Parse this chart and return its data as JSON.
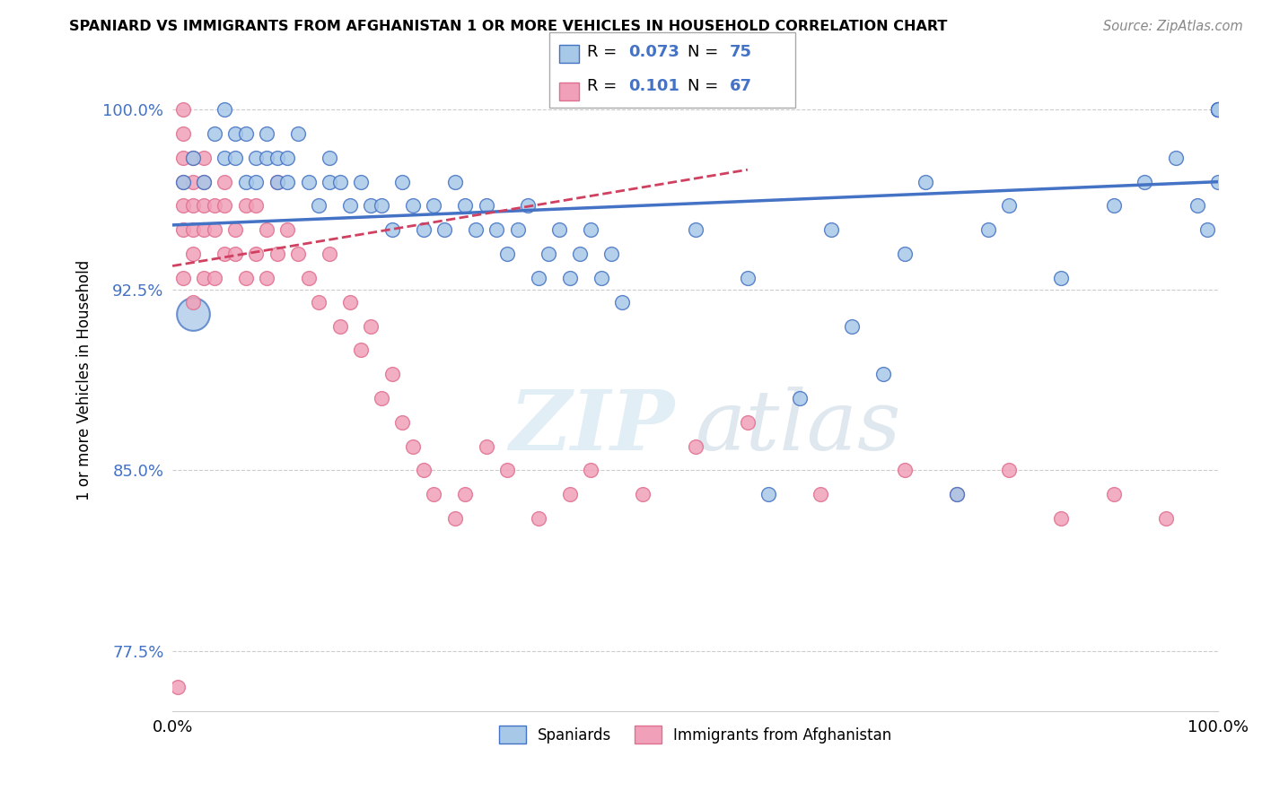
{
  "title": "SPANIARD VS IMMIGRANTS FROM AFGHANISTAN 1 OR MORE VEHICLES IN HOUSEHOLD CORRELATION CHART",
  "source": "Source: ZipAtlas.com",
  "ylabel": "1 or more Vehicles in Household",
  "xmin": 0.0,
  "xmax": 100.0,
  "ymin": 75.0,
  "ymax": 102.5,
  "yticks": [
    77.5,
    85.0,
    92.5,
    100.0
  ],
  "ytick_labels": [
    "77.5%",
    "85.0%",
    "92.5%",
    "100.0%"
  ],
  "xtick_labels": [
    "0.0%",
    "100.0%"
  ],
  "blue_R": 0.073,
  "blue_N": 75,
  "pink_R": 0.101,
  "pink_N": 67,
  "blue_color": "#a8c8e8",
  "pink_color": "#f0a0b8",
  "blue_line_color": "#4472c4",
  "pink_line_color": "#d04060",
  "legend_label_blue": "Spaniards",
  "legend_label_pink": "Immigrants from Afghanistan",
  "watermark_zip": "ZIP",
  "watermark_atlas": "atlas",
  "blue_line_x0": 0,
  "blue_line_x1": 100,
  "blue_line_y0": 95.2,
  "blue_line_y1": 97.0,
  "pink_line_x0": 0,
  "pink_line_x1": 55,
  "pink_line_y0": 93.5,
  "pink_line_y1": 97.5,
  "blue_points_x": [
    1,
    2,
    3,
    4,
    5,
    5,
    6,
    6,
    7,
    7,
    8,
    8,
    9,
    9,
    10,
    10,
    11,
    11,
    12,
    13,
    14,
    15,
    15,
    16,
    17,
    18,
    19,
    20,
    21,
    22,
    23,
    24,
    25,
    26,
    27,
    28,
    29,
    30,
    31,
    32,
    33,
    34,
    35,
    36,
    37,
    38,
    39,
    40,
    41,
    42,
    43,
    50,
    55,
    57,
    60,
    63,
    65,
    68,
    70,
    72,
    75,
    78,
    80,
    85,
    90,
    93,
    96,
    98,
    99,
    100,
    100,
    100,
    100,
    100,
    100
  ],
  "blue_points_y": [
    97,
    98,
    97,
    99,
    98,
    100,
    99,
    98,
    97,
    99,
    98,
    97,
    98,
    99,
    97,
    98,
    97,
    98,
    99,
    97,
    96,
    97,
    98,
    97,
    96,
    97,
    96,
    96,
    95,
    97,
    96,
    95,
    96,
    95,
    97,
    96,
    95,
    96,
    95,
    94,
    95,
    96,
    93,
    94,
    95,
    93,
    94,
    95,
    93,
    94,
    92,
    95,
    93,
    84,
    88,
    95,
    91,
    89,
    94,
    97,
    84,
    95,
    96,
    93,
    96,
    97,
    98,
    96,
    95,
    97,
    100,
    100,
    100,
    100,
    100
  ],
  "pink_points_x": [
    0.5,
    1,
    1,
    1,
    1,
    1,
    1,
    1,
    2,
    2,
    2,
    2,
    2,
    2,
    3,
    3,
    3,
    3,
    3,
    4,
    4,
    4,
    5,
    5,
    5,
    6,
    6,
    7,
    7,
    8,
    8,
    9,
    9,
    10,
    10,
    11,
    12,
    13,
    14,
    15,
    16,
    17,
    18,
    19,
    20,
    21,
    22,
    23,
    24,
    25,
    27,
    28,
    30,
    32,
    35,
    38,
    40,
    45,
    50,
    55,
    62,
    70,
    75,
    80,
    85,
    90,
    95
  ],
  "pink_points_y": [
    76,
    93,
    95,
    96,
    97,
    98,
    99,
    100,
    92,
    94,
    95,
    96,
    97,
    98,
    93,
    95,
    96,
    97,
    98,
    93,
    95,
    96,
    94,
    96,
    97,
    94,
    95,
    93,
    96,
    94,
    96,
    93,
    95,
    94,
    97,
    95,
    94,
    93,
    92,
    94,
    91,
    92,
    90,
    91,
    88,
    89,
    87,
    86,
    85,
    84,
    83,
    84,
    86,
    85,
    83,
    84,
    85,
    84,
    86,
    87,
    84,
    85,
    84,
    85,
    83,
    84,
    83
  ],
  "large_blue_dot_x": 2,
  "large_blue_dot_y": 91.5
}
